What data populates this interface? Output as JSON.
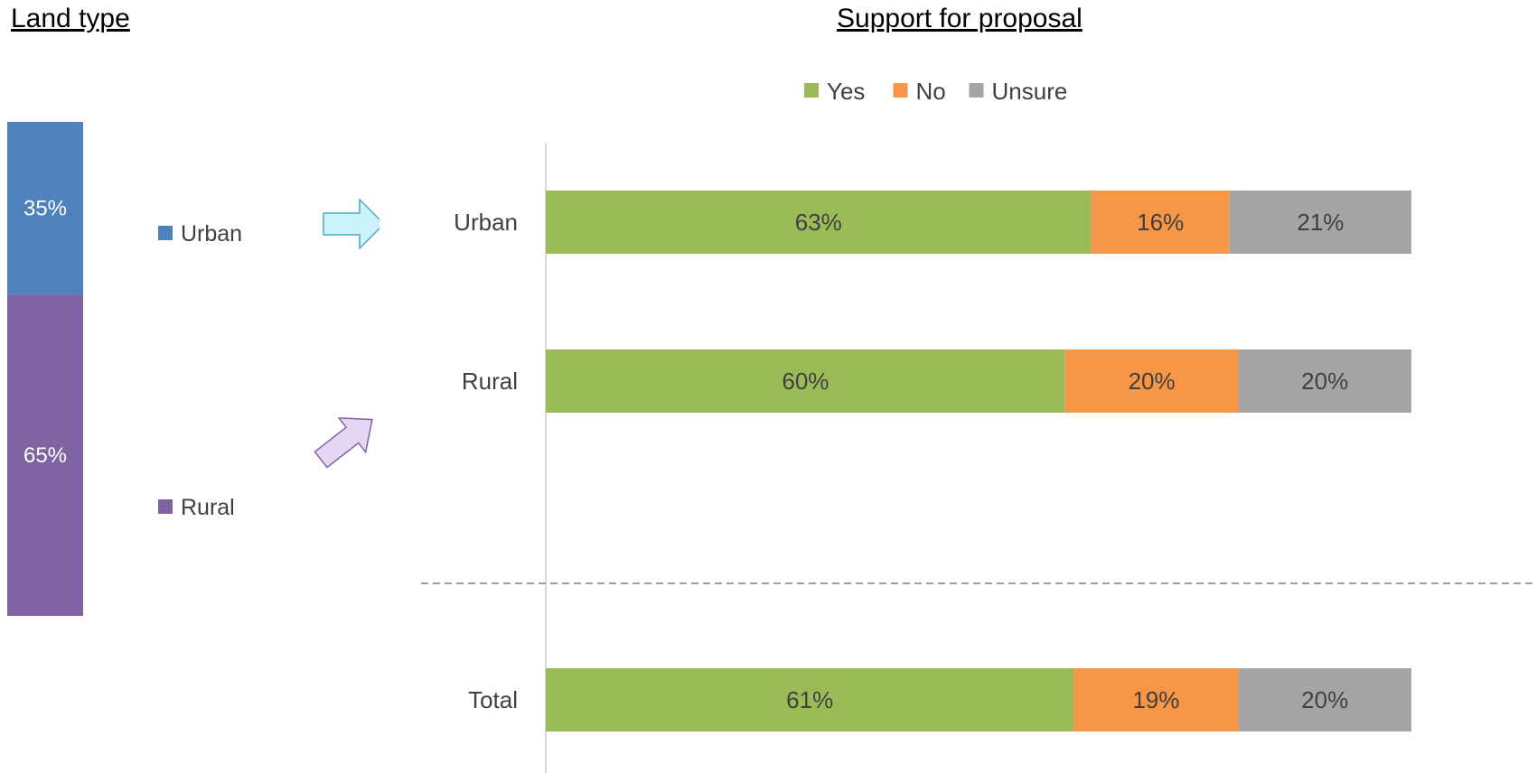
{
  "titles": {
    "land_type": "Land type",
    "support": "Support for proposal"
  },
  "colors": {
    "urban": "#4f81bd",
    "rural": "#8064a2",
    "yes": "#9bbb59",
    "no": "#f79646",
    "unsure": "#a5a5a5",
    "arrow_cyan_fill": "#ccf3fb",
    "arrow_cyan_stroke": "#4bacc6",
    "arrow_purple_fill": "#e4d7f3",
    "arrow_purple_stroke": "#8064a2"
  },
  "chart_data": [
    {
      "type": "bar",
      "stacked": true,
      "orientation": "vertical",
      "title": "Land type",
      "categories": [
        ""
      ],
      "series": [
        {
          "name": "Urban",
          "values": [
            35
          ],
          "label": "35%"
        },
        {
          "name": "Rural",
          "values": [
            65
          ],
          "label": "65%"
        }
      ],
      "legend": "right",
      "ylim": [
        0,
        100
      ]
    },
    {
      "type": "bar",
      "stacked": true,
      "orientation": "horizontal",
      "title": "Support for proposal",
      "categories": [
        "Urban",
        "Rural",
        "Total"
      ],
      "series": [
        {
          "name": "Yes",
          "values": [
            63,
            60,
            61
          ],
          "labels": [
            "63%",
            "60%",
            "61%"
          ]
        },
        {
          "name": "No",
          "values": [
            16,
            20,
            19
          ],
          "labels": [
            "16%",
            "20%",
            "19%"
          ]
        },
        {
          "name": "Unsure",
          "values": [
            21,
            20,
            20
          ],
          "labels": [
            "21%",
            "20%",
            "20%"
          ]
        }
      ],
      "legend": "top",
      "xlim": [
        0,
        100
      ],
      "grid": false
    }
  ]
}
